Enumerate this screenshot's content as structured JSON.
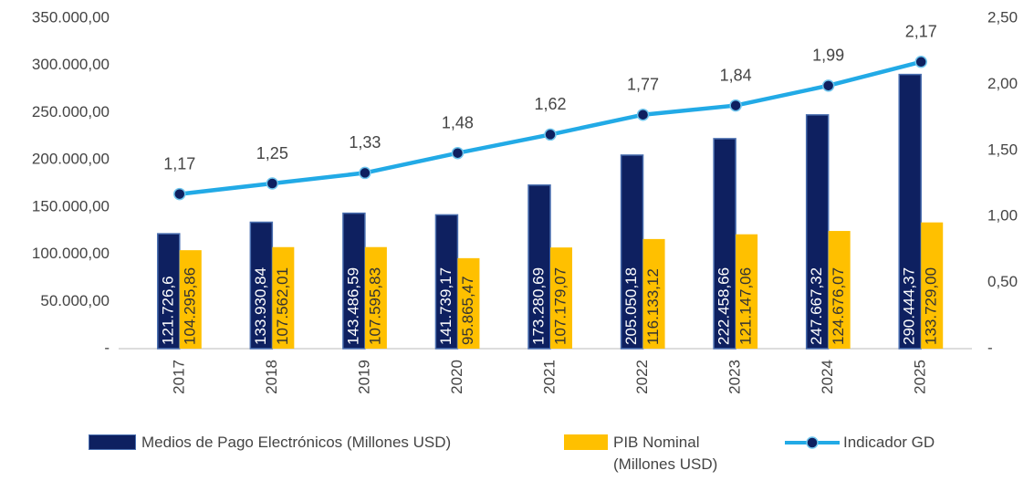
{
  "chart_data": {
    "type": "bar-line",
    "categories": [
      "2017",
      "2018",
      "2019",
      "2020",
      "2021",
      "2022",
      "2023",
      "2024",
      "2025"
    ],
    "series": [
      {
        "name": "Medios de Pago Electrónicos (Millones USD)",
        "type": "bar",
        "color": "#0e2060",
        "values": [
          121726.6,
          133930.84,
          143486.59,
          141739.17,
          173280.69,
          205050.18,
          222458.66,
          247667.32,
          290444.37
        ],
        "value_labels": [
          "121.726,6",
          "133.930,84",
          "143.486,59",
          "141.739,17",
          "173.280,69",
          "205.050,18",
          "222.458,66",
          "247.667,32",
          "290.444,37"
        ]
      },
      {
        "name": "PIB Nominal (Millones USD)",
        "type": "bar",
        "color": "#ffc000",
        "values": [
          104295.86,
          107562.01,
          107595.83,
          95865.47,
          107179.07,
          116133.12,
          121147.06,
          124676.07,
          133729.0
        ],
        "value_labels": [
          "104.295,86",
          "107.562,01",
          "107.595,83",
          "95.865,47",
          "107.179,07",
          "116.133,12",
          "121.147,06",
          "124.676,07",
          "133.729,00"
        ]
      },
      {
        "name": "Indicador GD",
        "type": "line",
        "axis": "y2",
        "color": "#22aae6",
        "values": [
          1.17,
          1.25,
          1.33,
          1.48,
          1.62,
          1.77,
          1.84,
          1.99,
          2.17
        ],
        "value_labels": [
          "1,17",
          "1,25",
          "1,33",
          "1,48",
          "1,62",
          "1,77",
          "1,84",
          "1,99",
          "2,17"
        ]
      }
    ],
    "ylim": [
      0,
      350000
    ],
    "yticks": [
      {
        "value": 0,
        "label": "-"
      },
      {
        "value": 50000,
        "label": "50.000,00"
      },
      {
        "value": 100000,
        "label": "100.000,00"
      },
      {
        "value": 150000,
        "label": "150.000,00"
      },
      {
        "value": 200000,
        "label": "200.000,00"
      },
      {
        "value": 250000,
        "label": "250.000,00"
      },
      {
        "value": 300000,
        "label": "300.000,00"
      },
      {
        "value": 350000,
        "label": "350.000,00"
      }
    ],
    "y2lim": [
      0,
      2.5
    ],
    "y2ticks": [
      {
        "value": 0,
        "label": "-"
      },
      {
        "value": 0.5,
        "label": "0,50"
      },
      {
        "value": 1,
        "label": "1,00"
      },
      {
        "value": 1.5,
        "label": "1,50"
      },
      {
        "value": 2,
        "label": "2,00"
      },
      {
        "value": 2.5,
        "label": "2,50"
      }
    ],
    "grid": false,
    "legend": "bottom"
  }
}
